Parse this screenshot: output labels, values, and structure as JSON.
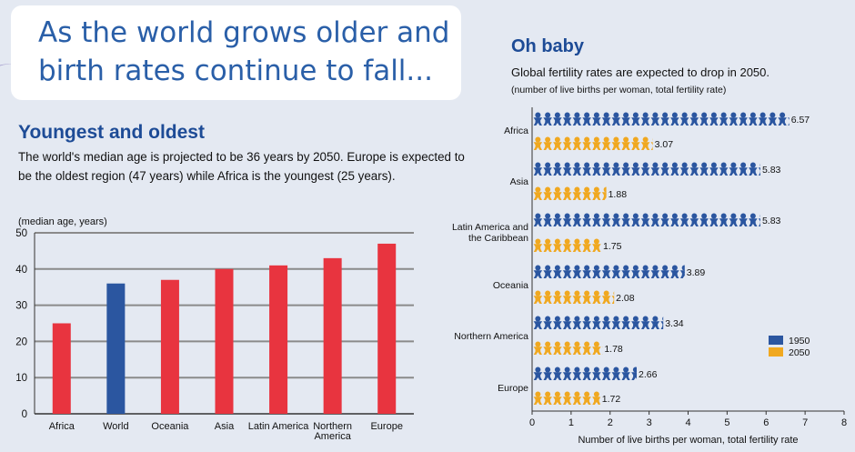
{
  "title": {
    "line1": "As the world grows older and",
    "line2": "birth rates continue to fall..."
  },
  "left": {
    "heading": "Youngest and oldest",
    "desc_line1": "The world's median age is projected to be 36 years by 2050. Europe is expected to",
    "desc_line2": "be the oldest region (47 years) while Africa is the youngest (25 years)."
  },
  "right": {
    "heading": "Oh baby",
    "subtitle": "Global fertility rates are expected to drop in 2050.",
    "unit_note": "(number of live births per woman, total fertility rate)"
  },
  "chart_data": [
    {
      "type": "bar",
      "ylabel": "(median age, years)",
      "ylim": [
        0,
        50
      ],
      "yticks": [
        0,
        10,
        20,
        30,
        40,
        50
      ],
      "grid": true,
      "categories": [
        "Africa",
        "World",
        "Oceania",
        "Asia",
        "Latin America",
        "Northern America",
        "Europe"
      ],
      "values": [
        25,
        36,
        37,
        40,
        41,
        43,
        47
      ],
      "colors": [
        "#e8343f",
        "#2b56a0",
        "#e8343f",
        "#e8343f",
        "#e8343f",
        "#e8343f",
        "#e8343f"
      ]
    },
    {
      "type": "bar",
      "orientation": "horizontal",
      "mark": "baby-icons",
      "xlabel": "Number of live births per woman, total fertility rate",
      "xlim": [
        0,
        8
      ],
      "xticks": [
        0,
        1,
        2,
        3,
        4,
        5,
        6,
        7,
        8
      ],
      "categories": [
        "Africa",
        "Asia",
        "Latin America and the Caribbean",
        "Oceania",
        "Northern America",
        "Europe"
      ],
      "category_lines": [
        [
          "Africa"
        ],
        [
          "Asia"
        ],
        [
          "Latin America and",
          "the Caribbean"
        ],
        [
          "Oceania"
        ],
        [
          "Northern America"
        ],
        [
          "Europe"
        ]
      ],
      "series": [
        {
          "name": "1950",
          "color": "#2b56a0",
          "values": [
            6.57,
            5.83,
            5.83,
            3.89,
            3.34,
            2.66
          ]
        },
        {
          "name": "2050",
          "color": "#f0a820",
          "values": [
            3.07,
            1.88,
            1.75,
            2.08,
            1.78,
            1.72
          ]
        }
      ],
      "legend": "bottom-right"
    }
  ]
}
